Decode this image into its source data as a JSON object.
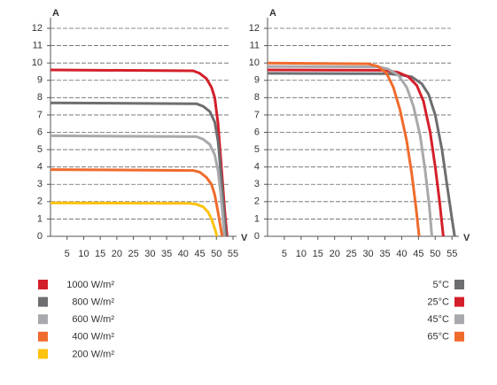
{
  "chart_data": [
    {
      "type": "line",
      "y_label": "A",
      "x_label": "V",
      "xlim": [
        0,
        55
      ],
      "ylim": [
        0,
        12
      ],
      "xticks": [
        5,
        10,
        15,
        20,
        25,
        30,
        35,
        40,
        45,
        50,
        55
      ],
      "yticks": [
        0,
        1,
        2,
        3,
        4,
        5,
        6,
        7,
        8,
        9,
        10,
        11,
        12
      ],
      "grid": true,
      "legend": "bottom-left",
      "series": [
        {
          "name": "1000 W/m²",
          "color": "#d4202b",
          "x": [
            0,
            43,
            45,
            47,
            48.5,
            49.5,
            50.5,
            51.5,
            52.5,
            53.2
          ],
          "values": [
            9.6,
            9.55,
            9.4,
            9.1,
            8.6,
            8.0,
            6.5,
            4.0,
            1.5,
            0
          ]
        },
        {
          "name": "800 W/m²",
          "color": "#6d6e71",
          "x": [
            0,
            44,
            46,
            48,
            49.5,
            50.5,
            51.5,
            52.3,
            52.9
          ],
          "values": [
            7.7,
            7.65,
            7.5,
            7.2,
            6.6,
            5.5,
            3.3,
            1.3,
            0
          ]
        },
        {
          "name": "600 W/m²",
          "color": "#a7a9ac",
          "x": [
            0,
            44,
            46,
            48,
            49.5,
            50.5,
            51.3,
            52,
            52.4
          ],
          "values": [
            5.8,
            5.75,
            5.6,
            5.3,
            4.7,
            3.8,
            2.5,
            1.0,
            0
          ]
        },
        {
          "name": "400 W/m²",
          "color": "#ef6b2c",
          "x": [
            0,
            43,
            45,
            47,
            48.5,
            49.5,
            50.5,
            51.3,
            51.7
          ],
          "values": [
            3.85,
            3.8,
            3.7,
            3.4,
            3.0,
            2.4,
            1.4,
            0.5,
            0
          ]
        },
        {
          "name": "200 W/m²",
          "color": "#fdc20c",
          "x": [
            0,
            42,
            44,
            46,
            47.5,
            48.5,
            49.5,
            50.2
          ],
          "values": [
            1.93,
            1.9,
            1.85,
            1.7,
            1.4,
            1.0,
            0.45,
            0
          ]
        }
      ]
    },
    {
      "type": "line",
      "y_label": "A",
      "x_label": "V",
      "xlim": [
        0,
        56
      ],
      "ylim": [
        0,
        12
      ],
      "xticks": [
        5,
        10,
        15,
        20,
        25,
        30,
        35,
        40,
        45,
        50,
        55
      ],
      "yticks": [
        0,
        1,
        2,
        3,
        4,
        5,
        6,
        7,
        8,
        9,
        10,
        11,
        12
      ],
      "grid": true,
      "legend": "bottom-right",
      "series": [
        {
          "name": "5°C",
          "color": "#6d6e71",
          "x": [
            0,
            36,
            40,
            43,
            46,
            48,
            50,
            52,
            53.5,
            55,
            55.8
          ],
          "values": [
            9.4,
            9.38,
            9.3,
            9.2,
            8.8,
            8.2,
            7.0,
            5.0,
            3.0,
            1.0,
            0
          ]
        },
        {
          "name": "25°C",
          "color": "#d4202b",
          "x": [
            0,
            35,
            39,
            42,
            44.5,
            46.5,
            48.5,
            50,
            51.3,
            52.4
          ],
          "values": [
            9.6,
            9.58,
            9.45,
            9.2,
            8.7,
            7.8,
            6.0,
            4.0,
            2.0,
            0
          ]
        },
        {
          "name": "45°C",
          "color": "#a7a9ac",
          "x": [
            0,
            33,
            36,
            39,
            41.5,
            43.5,
            45.5,
            47,
            48.2,
            49
          ],
          "values": [
            9.8,
            9.78,
            9.65,
            9.3,
            8.6,
            7.5,
            5.8,
            3.8,
            1.8,
            0
          ]
        },
        {
          "name": "65°C",
          "color": "#ef6b2c",
          "x": [
            0,
            30,
            33,
            35.5,
            37.5,
            39.5,
            41.5,
            43,
            44.3,
            45.2
          ],
          "values": [
            10.0,
            9.95,
            9.8,
            9.4,
            8.6,
            7.3,
            5.5,
            3.6,
            1.6,
            0
          ]
        }
      ]
    }
  ]
}
